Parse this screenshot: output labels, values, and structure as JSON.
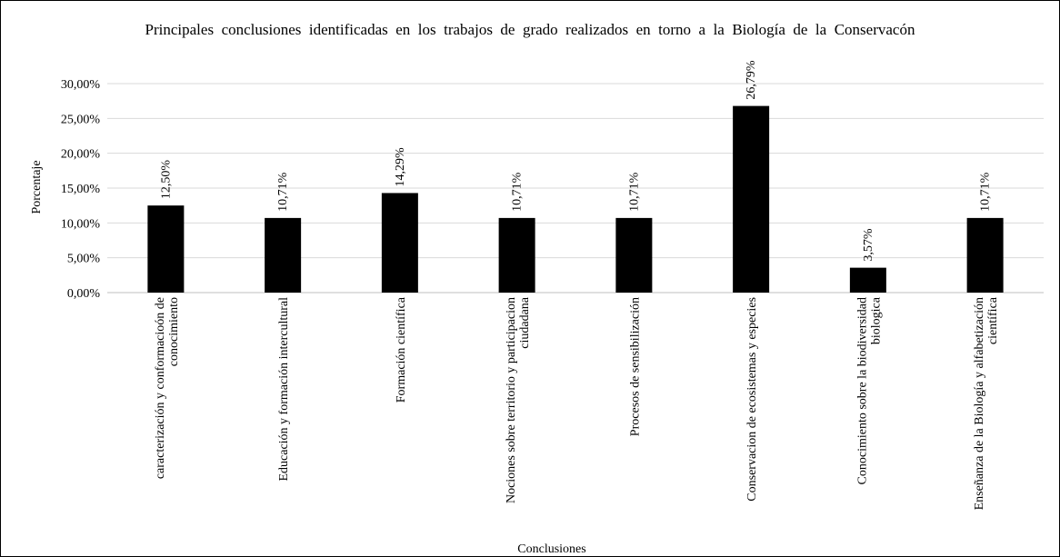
{
  "chart_data": {
    "type": "bar",
    "title": "Principales  conclusiones  identificadas  en  los  trabajos  de  grado  realizados  en  torno  a  la  Biología  de  la  Conservacón",
    "xlabel": "Conclusiones",
    "ylabel": "Porcentaje",
    "ylim": [
      0,
      30
    ],
    "yticks": [
      0,
      5,
      10,
      15,
      20,
      25,
      30
    ],
    "ytick_labels": [
      "0,00%",
      "5,00%",
      "10,00%",
      "15,00%",
      "20,00%",
      "25,00%",
      "30,00%"
    ],
    "grid": true,
    "legend": "none",
    "categories": [
      [
        "caracterización y conformacioón de",
        "conocimiento"
      ],
      [
        "Educación y formación intercultural"
      ],
      [
        "Formación científica"
      ],
      [
        "Nociones sobre territorio y participacion",
        "ciudadana"
      ],
      [
        "Procesos de sensibilización"
      ],
      [
        "Conservacion de ecosistemas y especies"
      ],
      [
        "Conocimiento sobre la biodiversidad",
        "biologica"
      ],
      [
        "Enseñanza de la Biología y alfabetización",
        "científica"
      ]
    ],
    "values": [
      12.5,
      10.71,
      14.29,
      10.71,
      10.71,
      26.79,
      3.57,
      10.71
    ],
    "data_labels": [
      "12,50%",
      "10,71%",
      "14,29%",
      "10,71%",
      "10,71%",
      "26,79%",
      "3,57%",
      "10,71%"
    ],
    "colors": {
      "bar": "#000000",
      "grid": "#d9d9d9",
      "axis": "#bfbfbf",
      "text": "#000000"
    }
  }
}
